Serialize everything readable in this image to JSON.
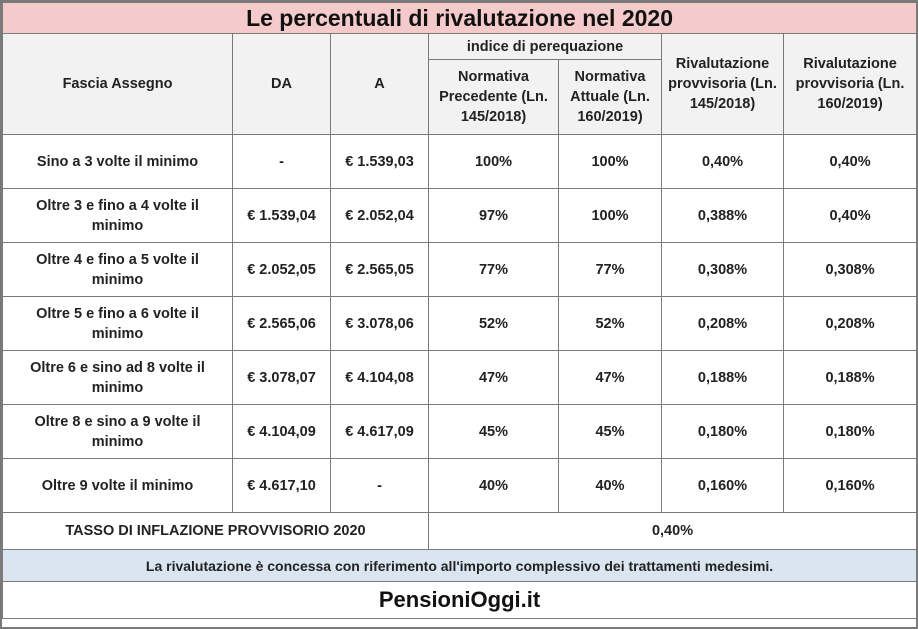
{
  "title": "Le percentuali di rivalutazione nel 2020",
  "headers": {
    "fascia": "Fascia Assegno",
    "da": "DA",
    "a": "A",
    "indice_group": "indice di perequazione",
    "norm_prec": "Normativa Precedente (Ln. 145/2018)",
    "norm_att": "Normativa Attuale (Ln. 160/2019)",
    "riv_145": "Rivalutazione provvisoria (Ln. 145/2018)",
    "riv_160": "Rivalutazione provvisoria (Ln. 160/2019)"
  },
  "rows": [
    {
      "fascia": "Sino a 3 volte il minimo",
      "da": "-",
      "a": "€ 1.539,03",
      "prec": "100%",
      "att": "100%",
      "riv145": "0,40%",
      "riv160": "0,40%"
    },
    {
      "fascia": "Oltre 3 e fino a 4 volte il minimo",
      "da": "€ 1.539,04",
      "a": "€ 2.052,04",
      "prec": "97%",
      "att": "100%",
      "riv145": "0,388%",
      "riv160": "0,40%"
    },
    {
      "fascia": "Oltre 4 e fino a 5 volte il minimo",
      "da": "€ 2.052,05",
      "a": "€ 2.565,05",
      "prec": "77%",
      "att": "77%",
      "riv145": "0,308%",
      "riv160": "0,308%"
    },
    {
      "fascia": "Oltre 5 e fino a 6 volte il minimo",
      "da": "€ 2.565,06",
      "a": "€ 3.078,06",
      "prec": "52%",
      "att": "52%",
      "riv145": "0,208%",
      "riv160": "0,208%"
    },
    {
      "fascia": "Oltre 6 e sino ad 8 volte il minimo",
      "da": "€ 3.078,07",
      "a": "€ 4.104,08",
      "prec": "47%",
      "att": "47%",
      "riv145": "0,188%",
      "riv160": "0,188%"
    },
    {
      "fascia": "Oltre 8  e sino a 9 volte il minimo",
      "da": "€ 4.104,09",
      "a": "€ 4.617,09",
      "prec": "45%",
      "att": "45%",
      "riv145": "0,180%",
      "riv160": "0,180%"
    },
    {
      "fascia": "Oltre 9 volte il minimo",
      "da": "€ 4.617,10",
      "a": "-",
      "prec": "40%",
      "att": "40%",
      "riv145": "0,160%",
      "riv160": "0,160%"
    }
  ],
  "inflation": {
    "label": "TASSO DI INFLAZIONE PROVVISORIO 2020",
    "value": "0,40%"
  },
  "note": "La rivalutazione è concessa con riferimento all'importo complessivo dei trattamenti medesimi.",
  "brand": "PensioniOggi.it",
  "colors": {
    "title_bg": "#f5caca",
    "note_bg": "#dbe5f1",
    "header_bg": "#f2f2f2",
    "border": "#7a7a7a"
  }
}
